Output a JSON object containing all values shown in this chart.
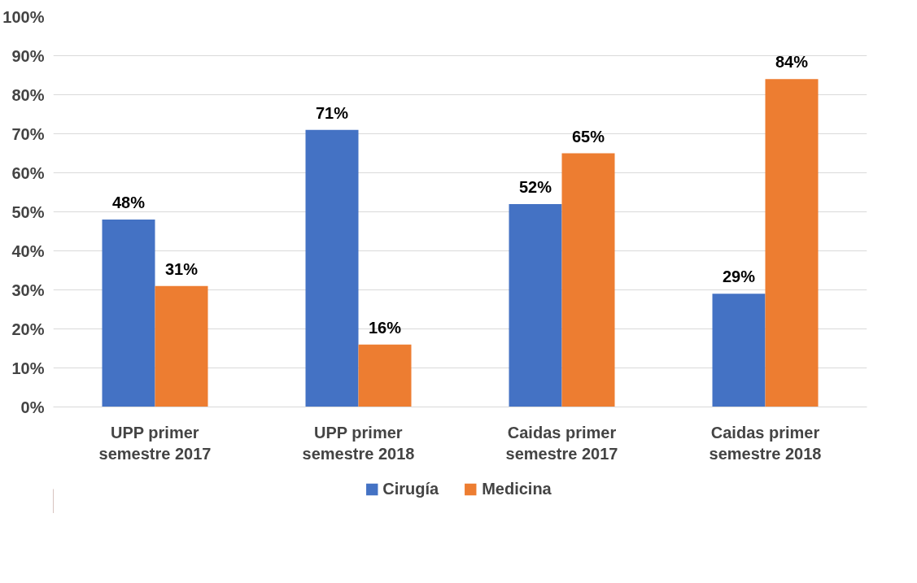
{
  "chart_data": {
    "type": "bar",
    "categories": [
      "UPP primer semestre 2017",
      "UPP primer semestre 2018",
      "Caidas primer semestre 2017",
      "Caidas primer semestre 2018"
    ],
    "series": [
      {
        "name": "Cirugía",
        "color": "#4472c4",
        "values": [
          48,
          71,
          52,
          29
        ],
        "value_labels": [
          "48%",
          "71%",
          "52%",
          "29%"
        ]
      },
      {
        "name": "Medicina",
        "color": "#ed7d31",
        "values": [
          31,
          16,
          65,
          84
        ],
        "value_labels": [
          "31%",
          "16%",
          "65%",
          "84%"
        ]
      }
    ],
    "ylim": [
      0,
      100
    ],
    "yticks": [
      {
        "value": 0,
        "label": "0%"
      },
      {
        "value": 10,
        "label": "10%"
      },
      {
        "value": 20,
        "label": "20%"
      },
      {
        "value": 30,
        "label": "30%"
      },
      {
        "value": 40,
        "label": "40%"
      },
      {
        "value": 50,
        "label": "50%"
      },
      {
        "value": 60,
        "label": "60%"
      },
      {
        "value": 70,
        "label": "70%"
      },
      {
        "value": 80,
        "label": "80%"
      },
      {
        "value": 90,
        "label": "90%"
      },
      {
        "value": 100,
        "label": "100%"
      }
    ],
    "grid": "y",
    "legend": "bottom"
  }
}
